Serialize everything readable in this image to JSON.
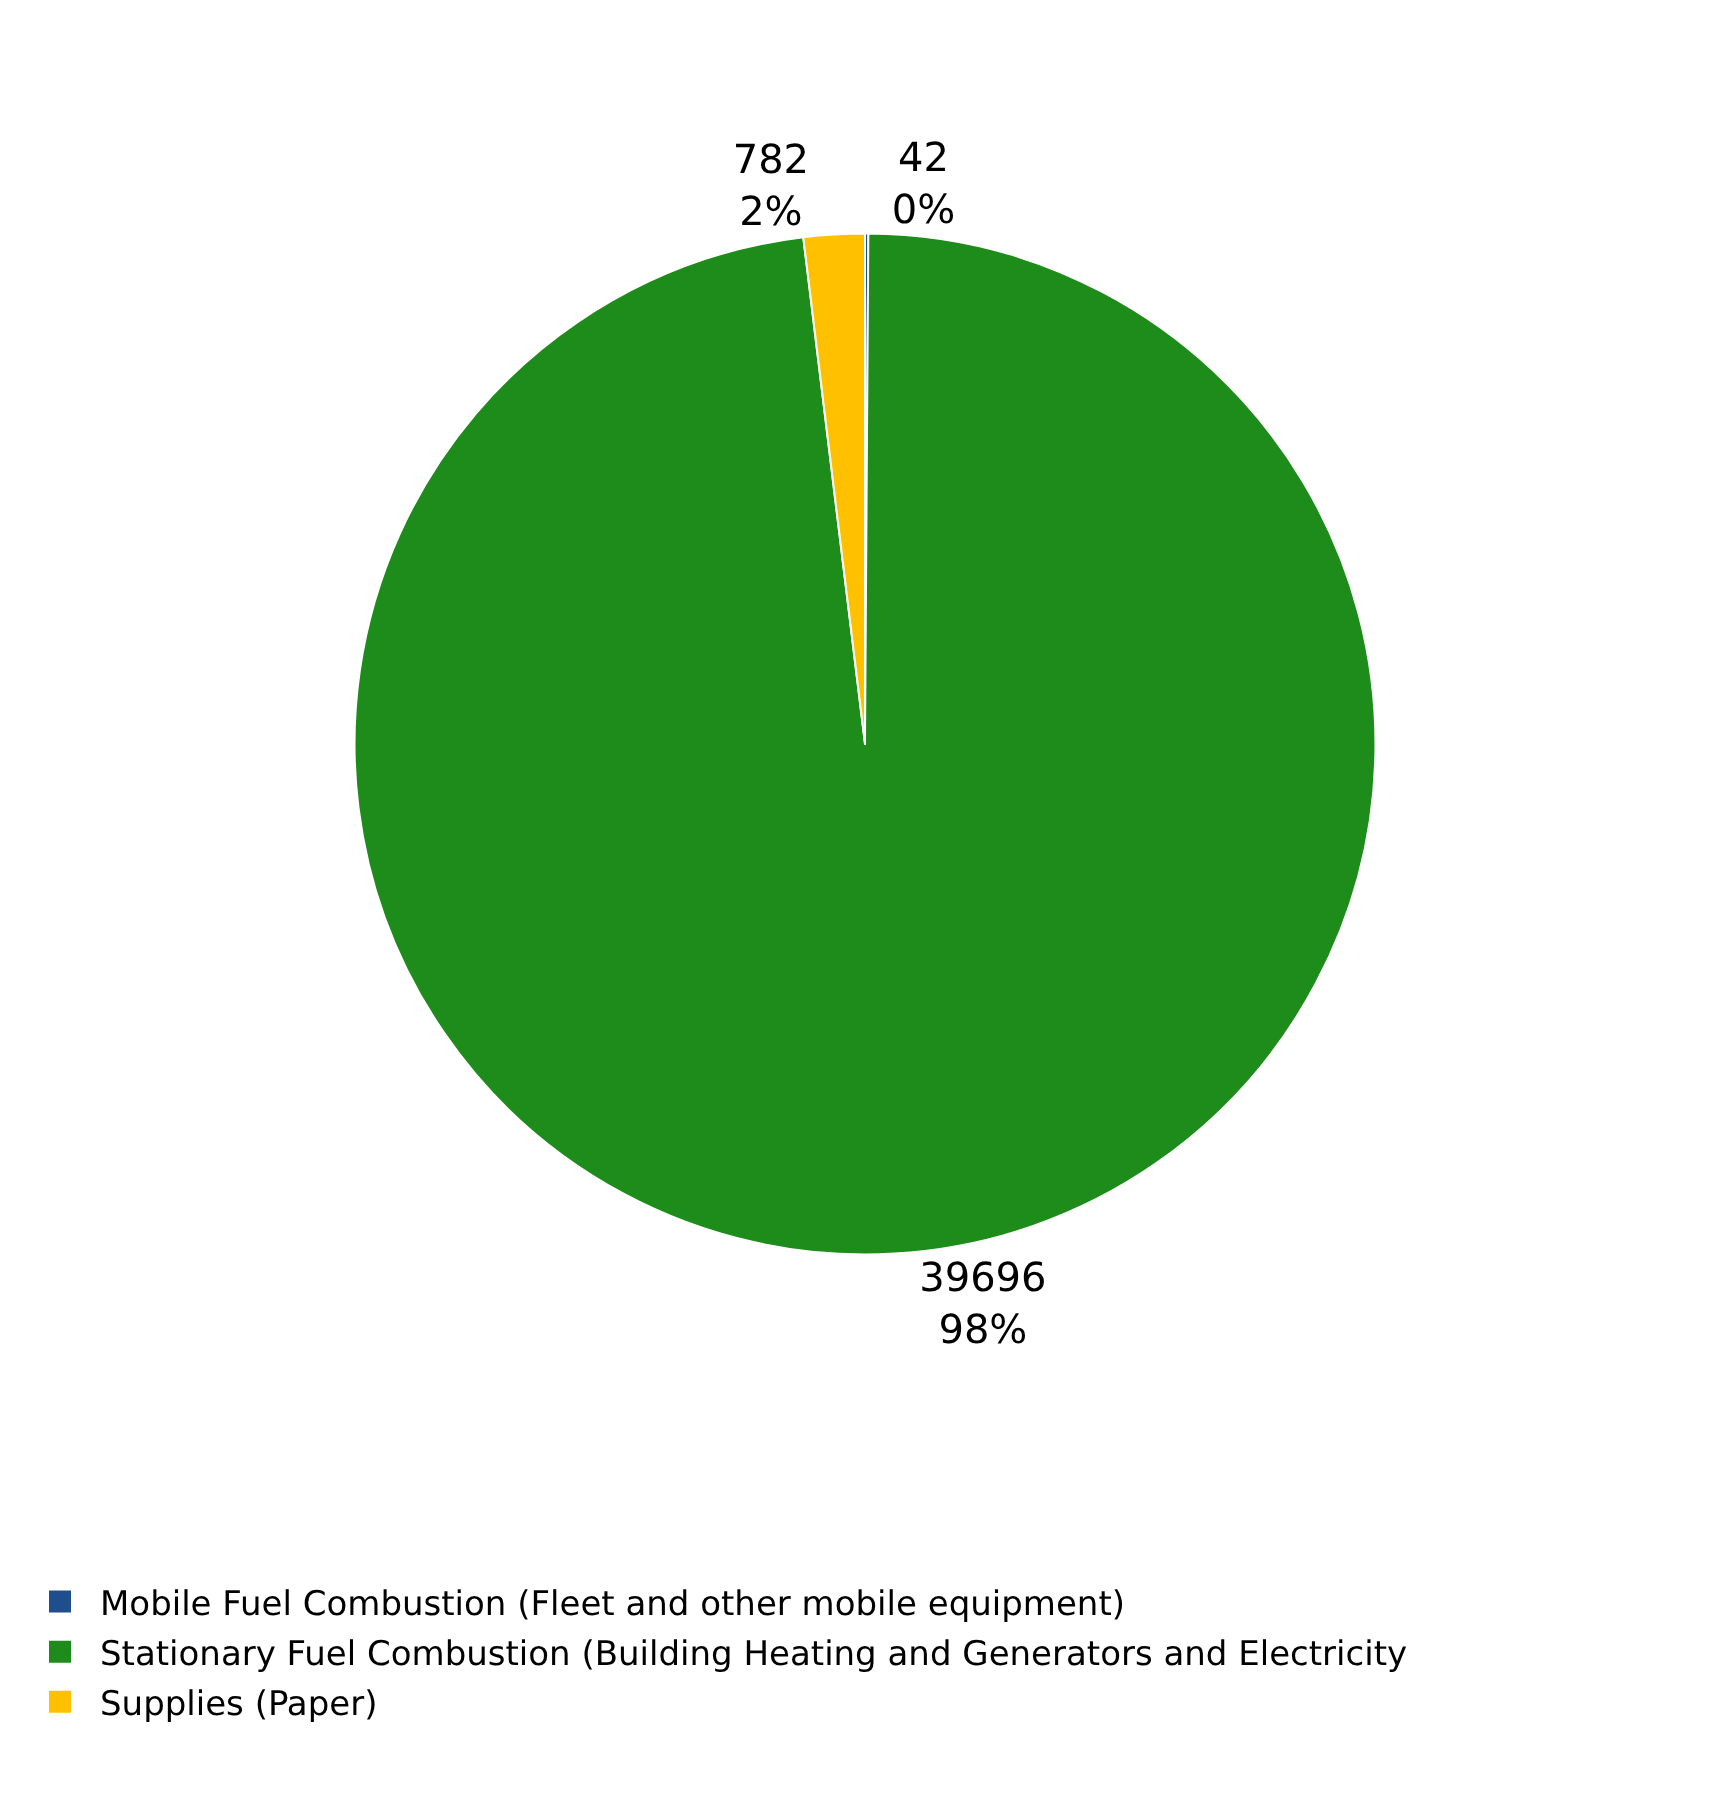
{
  "chart_data": {
    "type": "pie",
    "categories": [
      "Mobile Fuel Combustion (Fleet and other mobile equipment)",
      "Stationary Fuel Combustion (Building Heating and Generators and Electricity",
      "Supplies (Paper)"
    ],
    "values": [
      42,
      39696,
      782
    ],
    "colors": [
      "#1f4e8c",
      "#1e8c1a",
      "#ffc000"
    ],
    "value_labels": [
      "42\n0%",
      "39696\n98%",
      "782\n2%"
    ],
    "legend": "bottom"
  }
}
